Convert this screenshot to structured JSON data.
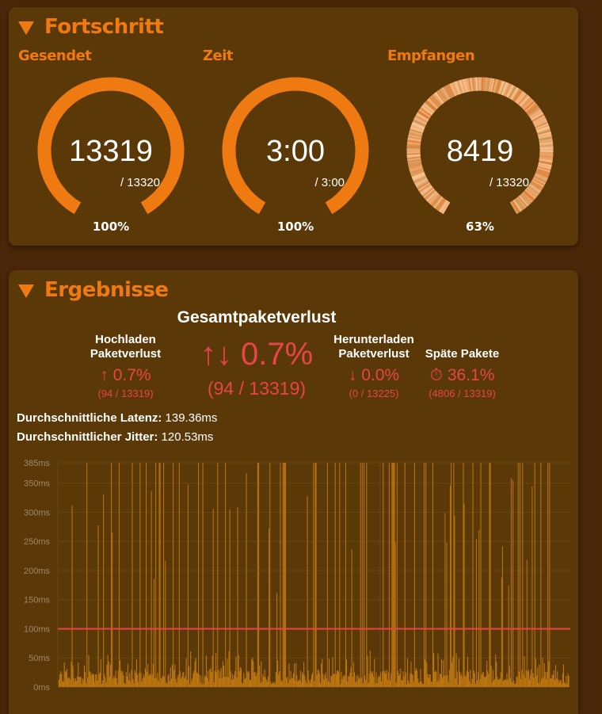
{
  "progress": {
    "title": "Fortschritt",
    "gauges": [
      {
        "label": "Gesendet",
        "value": "13319",
        "total": "/ 13320",
        "percent_label": "100%",
        "fraction": 0.9999
      },
      {
        "label": "Zeit",
        "value": "3:00",
        "total": "/ 3:00",
        "percent_label": "100%",
        "fraction": 1.0
      },
      {
        "label": "Empfangen",
        "value": "8419",
        "total": "/ 13320",
        "percent_label": "63%",
        "fraction": 0.63
      }
    ],
    "colors": {
      "accent": "#f07a12",
      "track": "#6b4510",
      "received": "#e8a86a"
    }
  },
  "results": {
    "title": "Ergebnisse",
    "total_loss": {
      "heading": "Gesamtpaketverlust",
      "value": "↑↓ 0.7%",
      "detail": "(94 / 13319)"
    },
    "upload_loss": {
      "heading_line1": "Hochladen",
      "heading_line2": "Paketverlust",
      "value": "↑ 0.7%",
      "detail": "(94 / 13319)"
    },
    "download_loss": {
      "heading_line1": "Herunterladen",
      "heading_line2": "Paketverlust",
      "value": "↓ 0.0%",
      "detail": "(0 / 13225)"
    },
    "late_packets": {
      "heading": "Späte Pakete",
      "value": "⏱ 36.1%",
      "detail": "(4806 / 13319)"
    },
    "avg_latency": {
      "label": "Durchschnittliche Latenz:",
      "value": "139.36ms"
    },
    "avg_jitter": {
      "label": "Durchschnittlicher Jitter:",
      "value": "120.53ms"
    }
  },
  "chart_data": {
    "type": "area",
    "y_ticks": [
      "0ms",
      "50ms",
      "100ms",
      "150ms",
      "200ms",
      "250ms",
      "300ms",
      "350ms",
      "385ms"
    ],
    "ylim": [
      0,
      385
    ],
    "threshold": 100,
    "threshold_color": "#e8454a",
    "series_color": "#c47a10",
    "grid": true
  }
}
